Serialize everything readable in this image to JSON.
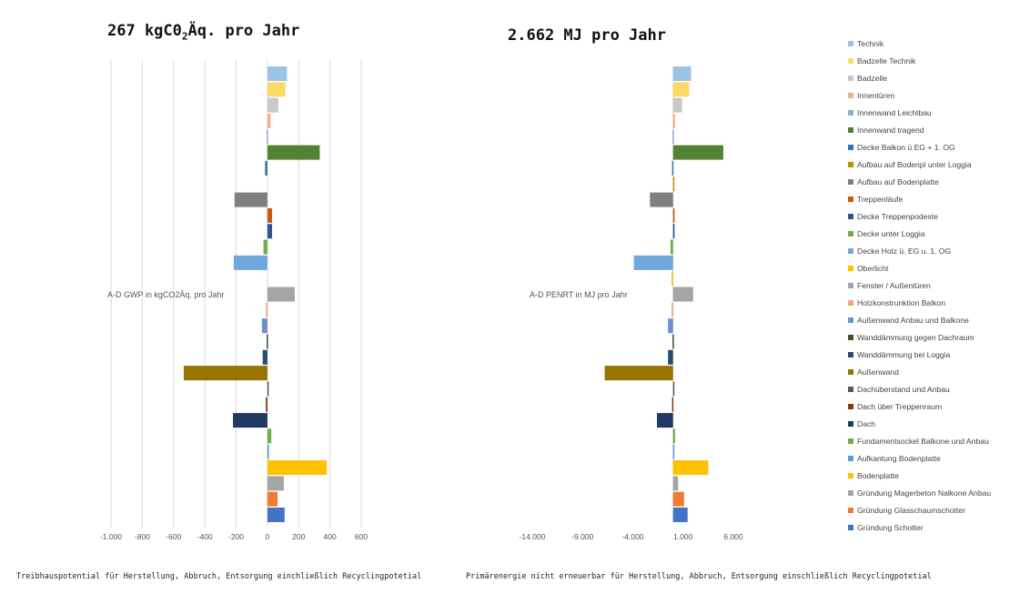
{
  "charts": {
    "left_title_main": "267 kgC0",
    "left_title_sub": "2",
    "left_title_rest": "Äq. pro Jahr",
    "right_title": "2.662 MJ pro Jahr"
  },
  "captions": {
    "left": "Treibhauspotential für Herstellung, Abbruch, Entsorgung einchließlich Recyclingpotetial",
    "right": "Primärenergie nicht erneuerbar für Herstellung, Abbruch, Entsorgung einschließlich Recyclingpotetial"
  },
  "legend": [
    {
      "name": "Technik",
      "color": "#9dc3e6"
    },
    {
      "name": "Badzelle Technik",
      "color": "#ffd966"
    },
    {
      "name": "Badzelle",
      "color": "#c9c9c9"
    },
    {
      "name": "Innentüren",
      "color": "#f4b183"
    },
    {
      "name": "Innenwand Leichtbau",
      "color": "#8faadc"
    },
    {
      "name": "Innenwand tragend",
      "color": "#548235"
    },
    {
      "name": "Decke Balkon ü EG + 1. OG",
      "color": "#2e75b6"
    },
    {
      "name": "Aufbau auf Bodenpl unter Loggia",
      "color": "#bf9000"
    },
    {
      "name": "Aufbau auf Bodenplatte",
      "color": "#7f7f7f"
    },
    {
      "name": "Treppenläufe",
      "color": "#c55a11"
    },
    {
      "name": "Decke Treppenpodeste",
      "color": "#2f5597"
    },
    {
      "name": "Decke unter Loggia",
      "color": "#70ad47"
    },
    {
      "name": "Decke Holz ü. EG u. 1. OG",
      "color": "#6fa8dc"
    },
    {
      "name": "Oberlicht",
      "color": "#ffc000"
    },
    {
      "name": "Fenster / Außentüren",
      "color": "#a5a5a5"
    },
    {
      "name": "Holzkonstrunktion Balkon",
      "color": "#f4a582"
    },
    {
      "name": "Außenwand Anbau und Balkone",
      "color": "#6d8fcf"
    },
    {
      "name": "Wanddämmung gegen Dachraum",
      "color": "#385723"
    },
    {
      "name": "Wanddämmung bei Loggia",
      "color": "#1f4e79"
    },
    {
      "name": "Außenwand",
      "color": "#997300"
    },
    {
      "name": "Dachüberstand und Anbau",
      "color": "#595959"
    },
    {
      "name": "Dach über Treppenraum",
      "color": "#843c0c"
    },
    {
      "name": "Dach",
      "color": "#203864"
    },
    {
      "name": "Fundamentsockel Balkone und Anbau",
      "color": "#70ad47"
    },
    {
      "name": "Aufkantung Bodenplatte",
      "color": "#5b9bd5"
    },
    {
      "name": "Bodenplatte",
      "color": "#ffc000"
    },
    {
      "name": "Gründung Magerbeton Nalkone Anbau",
      "color": "#a5a5a5"
    },
    {
      "name": "Gründung Glasschaumschotter",
      "color": "#ed7d31"
    },
    {
      "name": "Gründung Schotter",
      "color": "#4472c4"
    }
  ],
  "chart_data": [
    {
      "type": "bar",
      "orientation": "horizontal",
      "title": "267 kgC02Äq. pro Jahr",
      "axis_label": "A-D GWP in kgCO2Äq. pro Jahr",
      "xlim": [
        -1000,
        600
      ],
      "ticks": [
        "-1.000",
        "-800",
        "-600",
        "-400",
        "-200",
        "0",
        "200",
        "400",
        "600"
      ],
      "tick_values": [
        -1000,
        -800,
        -600,
        -400,
        -200,
        0,
        200,
        400,
        600
      ],
      "grid": true,
      "categories": [
        "Technik",
        "Badzelle Technik",
        "Badzelle",
        "Innentüren",
        "Innenwand Leichtbau",
        "Innenwand tragend",
        "Decke Balkon ü EG + 1. OG",
        "Aufbau auf Bodenpl unter Loggia",
        "Aufbau auf Bodenplatte",
        "Treppenläufe",
        "Decke Treppenpodeste",
        "Decke unter Loggia",
        "Decke Holz ü. EG u. 1. OG",
        "Oberlicht",
        "Fenster / Außentüren",
        "Holzkonstrunktion Balkon",
        "Außenwand Anbau und Balkone",
        "Wanddämmung gegen Dachraum",
        "Wanddämmung bei Loggia",
        "Außenwand",
        "Dachüberstand und Anbau",
        "Dach über Treppenraum",
        "Dach",
        "Fundamentsockel Balkone und Anbau",
        "Aufkantung Bodenplatte",
        "Bodenplatte",
        "Gründung Magerbeton Nalkone Anbau",
        "Gründung Glasschaumschotter",
        "Gründung Schotter"
      ],
      "values": [
        125,
        115,
        70,
        20,
        -5,
        335,
        -15,
        0,
        -210,
        30,
        30,
        -25,
        -215,
        0,
        175,
        -10,
        -35,
        -5,
        -30,
        -535,
        5,
        -10,
        -220,
        25,
        10,
        380,
        105,
        65,
        110
      ]
    },
    {
      "type": "bar",
      "orientation": "horizontal",
      "title": "2.662 MJ pro Jahr",
      "axis_label": "A-D PENRT in MJ pro Jahr",
      "xlim": [
        -14000,
        6000
      ],
      "ticks": [
        "-14.000",
        "-9.000",
        "-4.000",
        "1.000",
        "6.000"
      ],
      "tick_values": [
        -14000,
        -9000,
        -4000,
        1000,
        6000
      ],
      "grid": false,
      "categories": [
        "Technik",
        "Badzelle Technik",
        "Badzelle",
        "Innentüren",
        "Innenwand Leichtbau",
        "Innenwand tragend",
        "Decke Balkon ü EG + 1. OG",
        "Aufbau auf Bodenpl unter Loggia",
        "Aufbau auf Bodenplatte",
        "Treppenläufe",
        "Decke Treppenpodeste",
        "Decke unter Loggia",
        "Decke Holz ü. EG u. 1. OG",
        "Oberlicht",
        "Fenster / Außentüren",
        "Holzkonstrunktion Balkon",
        "Außenwand Anbau und Balkone",
        "Wanddämmung gegen Dachraum",
        "Wanddämmung bei Loggia",
        "Außenwand",
        "Dachüberstand und Anbau",
        "Dach über Treppenraum",
        "Dach",
        "Fundamentsockel Balkone und Anbau",
        "Aufkantung Bodenplatte",
        "Bodenplatte",
        "Gründung Magerbeton Nalkone Anbau",
        "Gründung Glasschaumschotter",
        "Gründung Schotter"
      ],
      "values": [
        1800,
        1600,
        900,
        200,
        -50,
        5000,
        -100,
        100,
        -2300,
        150,
        150,
        -250,
        -3900,
        -150,
        2000,
        -150,
        -500,
        -50,
        -500,
        -6800,
        100,
        -100,
        -1600,
        200,
        50,
        3500,
        500,
        1100,
        1450
      ]
    }
  ]
}
